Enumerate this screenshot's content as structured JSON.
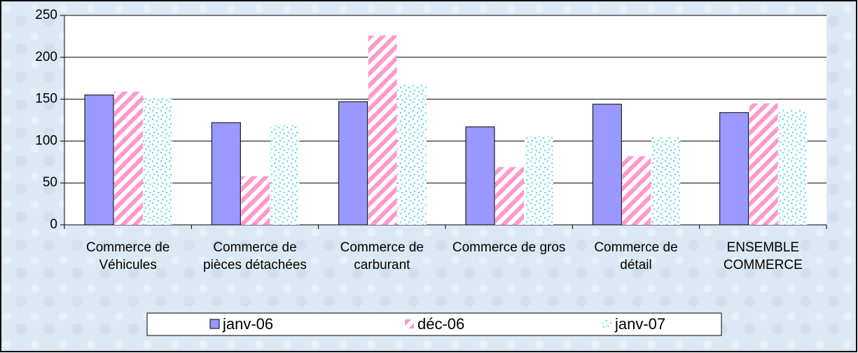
{
  "chart_data": {
    "type": "bar",
    "categories": [
      "Commerce de Véhicules",
      "Commerce de pièces détachées",
      "Commerce de carburant",
      "Commerce de gros",
      "Commerce de détail",
      "ENSEMBLE COMMERCE"
    ],
    "series": [
      {
        "name": "janv-06",
        "color": "#9999ff",
        "pattern": "solid",
        "values": [
          155,
          122,
          147,
          117,
          144,
          134
        ]
      },
      {
        "name": "déc-06",
        "color": "#ff99cc",
        "pattern": "diagonal",
        "values": [
          159,
          58,
          226,
          69,
          82,
          145
        ]
      },
      {
        "name": "janv-07",
        "color": "#66dddd",
        "pattern": "dots",
        "values": [
          152,
          119,
          167,
          106,
          105,
          137
        ]
      }
    ],
    "ylim": [
      0,
      250
    ],
    "yticks": [
      0,
      50,
      100,
      150,
      200,
      250
    ],
    "grid": true,
    "legend": "bottom"
  }
}
